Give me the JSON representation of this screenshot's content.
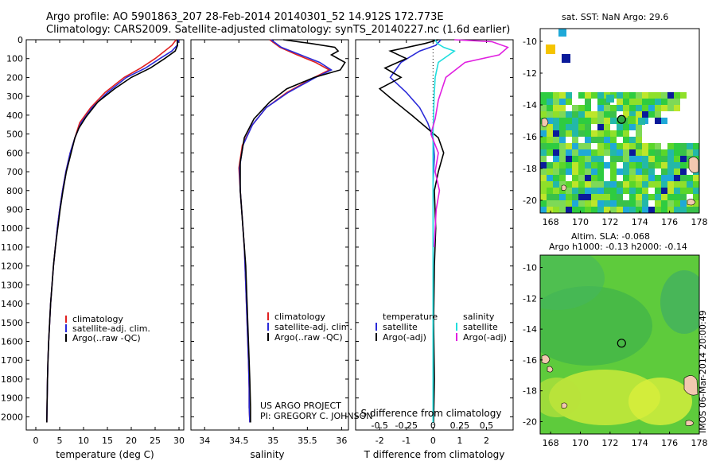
{
  "header": {
    "line1": "Argo profile: AO 5901863_207 28-Feb-2014 20140301_52 14.912S 172.773E",
    "line2": "Climatology: CARS2009. Satellite-adjusted climatology: synTS_20140227.nc (1.6d earlier)"
  },
  "sst_title": "sat. SST: NaN Argo: 29.6",
  "sla_title": {
    "line1": "Altim. SLA: -0.068",
    "line2": "Argo h1000: -0.13 h2000: -0.14"
  },
  "stamp": "IMOS 06-Mar-2014 20:00:49",
  "credit": {
    "line1": "US ARGO PROJECT",
    "line2": "PI: GREGORY C. JOHNSON"
  },
  "colors": {
    "climatology": "#e02020",
    "satellite_adj": "#2a2ad8",
    "argo": "#000000",
    "satellite_s": "#20dede",
    "argo_s": "#e020e0"
  },
  "chart_data": [
    {
      "type": "line",
      "id": "temperature",
      "xlabel": "temperature (deg C)",
      "ylabel": "",
      "xlim": [
        -2,
        31
      ],
      "ylim": [
        2070,
        0
      ],
      "xticks": [
        0,
        5,
        10,
        15,
        20,
        25,
        30
      ],
      "yticks": [
        0,
        100,
        200,
        300,
        400,
        500,
        600,
        700,
        800,
        900,
        1000,
        1100,
        1200,
        1300,
        1400,
        1500,
        1600,
        1700,
        1800,
        1900,
        2000
      ],
      "legend": [
        "climatology",
        "satellite-adj. clim.",
        "Argo(..raw -QC)"
      ],
      "series": [
        {
          "name": "climatology",
          "color_key": "climatology",
          "x": [
            29.4,
            28.5,
            27,
            25,
            22,
            18.5,
            14.5,
            11.5,
            9.2,
            8.2,
            7.2,
            6.3,
            5.6,
            5,
            4.5,
            4.1,
            3.7,
            3.4,
            3.1,
            2.9,
            2.7,
            2.55,
            2.45,
            2.35,
            2.3
          ],
          "y": [
            0,
            30,
            60,
            100,
            150,
            200,
            280,
            360,
            440,
            520,
            600,
            700,
            800,
            900,
            1000,
            1100,
            1200,
            1300,
            1400,
            1500,
            1600,
            1700,
            1800,
            1950,
            2030
          ]
        },
        {
          "name": "satellite-adj. clim.",
          "color_key": "satellite_adj",
          "x": [
            29.9,
            29.6,
            28.5,
            26,
            23,
            19,
            15,
            11.8,
            9.5,
            8.2,
            7.2,
            6.3,
            5.6,
            5,
            4.5,
            4.1,
            3.7,
            3.4,
            3.1,
            2.9,
            2.7,
            2.55,
            2.45,
            2.35,
            2.3
          ],
          "y": [
            0,
            30,
            60,
            100,
            150,
            200,
            280,
            360,
            440,
            520,
            600,
            700,
            800,
            900,
            1000,
            1100,
            1200,
            1300,
            1400,
            1500,
            1600,
            1700,
            1800,
            1950,
            2030
          ]
        },
        {
          "name": "Argo(..raw -QC)",
          "color_key": "argo",
          "x": [
            29.6,
            29.7,
            29.2,
            27,
            24,
            20,
            16.5,
            13,
            10.5,
            9,
            8.2,
            7.4,
            6.4,
            5.7,
            5.1,
            4.6,
            4.1,
            3.7,
            3.4,
            3.1,
            2.9,
            2.7,
            2.55,
            2.45,
            2.35,
            2.3
          ],
          "y": [
            0,
            30,
            60,
            100,
            150,
            200,
            260,
            330,
            410,
            470,
            520,
            600,
            700,
            800,
            900,
            1000,
            1100,
            1200,
            1300,
            1400,
            1500,
            1600,
            1700,
            1800,
            1950,
            2030
          ]
        }
      ]
    },
    {
      "type": "line",
      "id": "salinity",
      "xlabel": "salinity",
      "ylabel": "",
      "xlim": [
        33.8,
        36.1
      ],
      "ylim": [
        2070,
        0
      ],
      "xticks": [
        34,
        34.5,
        35,
        35.5,
        36
      ],
      "legend": [
        "climatology",
        "satellite-adj. clim.",
        "Argo(..raw -QC)"
      ],
      "series": [
        {
          "name": "climatology",
          "color_key": "climatology",
          "x": [
            34.95,
            35.1,
            35.35,
            35.62,
            35.82,
            35.6,
            35.2,
            34.9,
            34.7,
            34.55,
            34.5,
            34.52,
            34.55,
            34.58,
            34.6,
            34.62,
            34.64,
            34.65,
            34.65,
            34.66
          ],
          "y": [
            0,
            40,
            80,
            120,
            160,
            200,
            280,
            360,
            450,
            560,
            680,
            800,
            950,
            1100,
            1300,
            1500,
            1700,
            1850,
            1950,
            2030
          ]
        },
        {
          "name": "satellite-adj. clim.",
          "color_key": "satellite_adj",
          "x": [
            34.97,
            35.12,
            35.4,
            35.68,
            35.85,
            35.62,
            35.22,
            34.9,
            34.7,
            34.56,
            34.51,
            34.52,
            34.55,
            34.58,
            34.6,
            34.62,
            34.64,
            34.65,
            34.65,
            34.66
          ],
          "y": [
            0,
            40,
            80,
            120,
            160,
            200,
            280,
            360,
            450,
            560,
            680,
            800,
            950,
            1100,
            1300,
            1500,
            1700,
            1850,
            1950,
            2030
          ]
        },
        {
          "name": "Argo(..raw -QC)",
          "color_key": "argo",
          "x": [
            35.15,
            35.55,
            35.9,
            35.95,
            35.85,
            36.05,
            35.98,
            35.6,
            35.2,
            34.95,
            34.72,
            34.58,
            34.52,
            34.52,
            34.56,
            34.6,
            34.62,
            34.64,
            34.66,
            34.67,
            34.67
          ],
          "y": [
            0,
            20,
            40,
            60,
            80,
            120,
            160,
            200,
            260,
            330,
            420,
            520,
            650,
            800,
            1000,
            1200,
            1400,
            1600,
            1800,
            1950,
            2030
          ]
        }
      ]
    },
    {
      "type": "line",
      "id": "difference",
      "xlabel": "T difference from climatology",
      "xlabel_top": "S difference from climatology",
      "ylabel": "",
      "t_xlim": [
        -2.9,
        3.0
      ],
      "t_xticks": [
        -2,
        -1,
        0,
        1,
        2
      ],
      "s_xlim": [
        -0.725,
        0.75
      ],
      "s_xticks": [
        -0.5,
        -0.25,
        0,
        0.25,
        0.5
      ],
      "s_xticklabels": [
        "-0.5",
        "-0.25",
        "0",
        "0.25",
        "0.5"
      ],
      "ylim": [
        2070,
        0
      ],
      "legend_left_title": "temperature",
      "legend_right_title": "salinity",
      "legend_left": [
        "satellite",
        "Argo(-adj)"
      ],
      "legend_right": [
        "satellite",
        "Argo(-adj)"
      ],
      "series": [
        {
          "name": "temperature satellite",
          "color_key": "satellite_adj",
          "x": [
            0.3,
            0.1,
            -0.5,
            -1.2,
            -1.6,
            -1.0,
            -0.5,
            -0.2,
            0,
            0.05,
            0,
            0,
            0,
            0
          ],
          "y": [
            0,
            30,
            60,
            120,
            200,
            280,
            360,
            440,
            520,
            620,
            760,
            900,
            1100,
            2030
          ]
        },
        {
          "name": "temperature Argo(-adj)",
          "color_key": "argo",
          "x": [
            0.2,
            -0.3,
            -1.6,
            -1.0,
            -1.8,
            -1.2,
            -2.0,
            -1.5,
            -0.8,
            -0.3,
            0.2,
            0.4,
            0.2,
            0.05,
            0.1,
            0.05,
            0.02,
            0.05,
            0.02
          ],
          "y": [
            0,
            20,
            60,
            100,
            150,
            200,
            260,
            320,
            400,
            460,
            520,
            600,
            700,
            800,
            1000,
            1200,
            1500,
            1800,
            2030
          ]
        },
        {
          "name": "salinity satellite",
          "color_key": "satellite_s",
          "x": [
            0.02,
            0.04,
            0.1,
            0.2,
            0.15,
            0.05,
            0.02,
            0.01,
            0,
            0,
            0,
            0
          ],
          "y": [
            0,
            20,
            40,
            60,
            80,
            120,
            200,
            300,
            500,
            800,
            1200,
            2030
          ]
        },
        {
          "name": "salinity Argo(-adj)",
          "color_key": "argo_s",
          "x": [
            0.2,
            0.55,
            0.7,
            0.62,
            0.3,
            0.12,
            0.05,
            0.02,
            -0.02,
            0.05,
            0.02,
            0.06,
            0.03,
            0.02,
            0.01
          ],
          "y": [
            0,
            10,
            40,
            80,
            120,
            200,
            320,
            420,
            500,
            600,
            700,
            800,
            900,
            1000,
            1100
          ]
        }
      ]
    },
    {
      "type": "heatmap",
      "id": "sst_map",
      "title": "sat. SST: NaN Argo: 29.6",
      "xlim": [
        167.3,
        178
      ],
      "ylim": [
        -20.8,
        -9.2
      ],
      "xticks": [
        168,
        170,
        172,
        174,
        176,
        178
      ],
      "yticks": [
        -10,
        -12,
        -14,
        -16,
        -18,
        -20
      ],
      "argo_position": {
        "lon": 172.773,
        "lat": -14.912
      }
    },
    {
      "type": "heatmap",
      "id": "sla_map",
      "title": "Altim. SLA: -0.068",
      "xlim": [
        167.3,
        178
      ],
      "ylim": [
        -20.8,
        -9.2
      ],
      "xticks": [
        168,
        170,
        172,
        174,
        176,
        178
      ],
      "yticks": [
        -10,
        -12,
        -14,
        -16,
        -18,
        -20
      ],
      "argo_position": {
        "lon": 172.773,
        "lat": -14.912
      }
    }
  ]
}
